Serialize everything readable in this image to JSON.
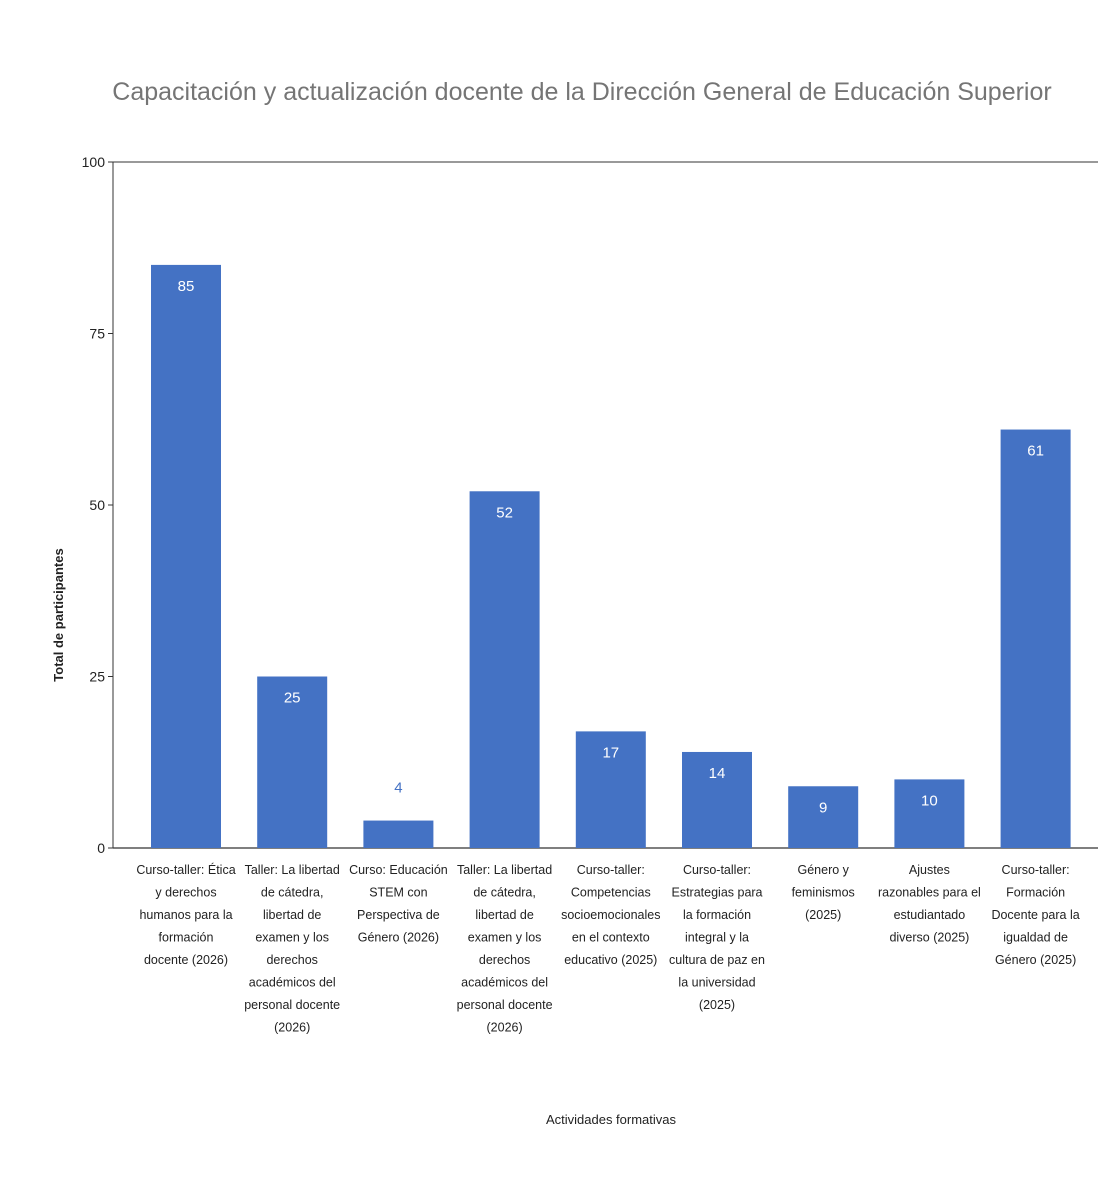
{
  "chart_data": {
    "type": "bar",
    "title": "Capacitación y actualización docente de la Dirección General de Educación Superior",
    "xlabel": "Actividades formativas",
    "ylabel": "Total de participantes",
    "ylim": [
      0,
      100
    ],
    "yticks": [
      0,
      25,
      50,
      75,
      100
    ],
    "grid": false,
    "legend": "none",
    "bar_color": "#4472c4",
    "categories": [
      "Curso-taller: Ética y derechos humanos para la formación docente (2026)",
      "Taller: La libertad de cátedra, libertad de examen y los derechos académicos del personal docente (2026)",
      "Curso: Educación STEM con Perspectiva de Género (2026)",
      "Taller: La libertad de cátedra, libertad de examen y los derechos académicos del personal docente (2026)",
      "Curso-taller: Competencias socioemocionales en el contexto educativo (2025)",
      "Curso-taller: Estrategias para la formación integral y la cultura de paz en la universidad (2025)",
      "Género y feminismos (2025)",
      "Ajustes razonables para el estudiantado diverso (2025)",
      "Curso-taller: Formación Docente para la igualdad de Género (2025)"
    ],
    "category_lines": [
      [
        "Curso-taller: Ética",
        "y derechos",
        "humanos para la",
        "formación",
        "docente (2026)"
      ],
      [
        "Taller: La libertad",
        "de cátedra,",
        "libertad de",
        "examen y los",
        "derechos",
        "académicos del",
        "personal docente",
        "(2026)"
      ],
      [
        "Curso: Educación",
        "STEM con",
        "Perspectiva de",
        "Género (2026)"
      ],
      [
        "Taller: La libertad",
        "de cátedra,",
        "libertad de",
        "examen y los",
        "derechos",
        "académicos del",
        "personal docente",
        "(2026)"
      ],
      [
        "Curso-taller:",
        "Competencias",
        "socioemocionales",
        "en el contexto",
        "educativo (2025)"
      ],
      [
        "Curso-taller:",
        "Estrategias para",
        "la formación",
        "integral y la",
        "cultura de paz en",
        "la universidad",
        "(2025)"
      ],
      [
        "Género y",
        "feminismos",
        "(2025)"
      ],
      [
        "Ajustes",
        "razonables para el",
        "estudiantado",
        "diverso (2025)"
      ],
      [
        "Curso-taller:",
        "Formación",
        "Docente para la",
        "igualdad de",
        "Género (2025)"
      ]
    ],
    "values": [
      85,
      25,
      4,
      52,
      17,
      14,
      9,
      10,
      61
    ]
  }
}
